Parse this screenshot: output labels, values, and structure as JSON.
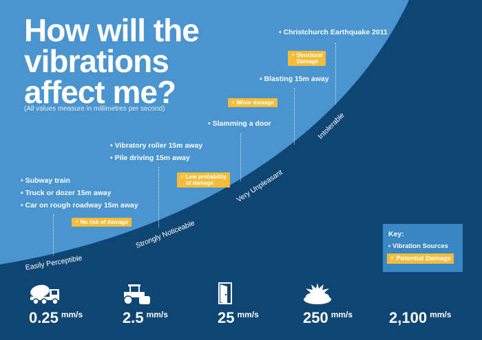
{
  "title_line1": "How will the",
  "title_line2": "vibrations",
  "title_line3": "affect me?",
  "subtitle": "(All values measure in millimetres per second)",
  "columns": [
    {
      "sources": [
        "Subway train",
        "Truck or dozer 15m away",
        "Car on rough roadway 15m away"
      ],
      "damage": [
        "No risk of damage"
      ],
      "level": "Easily Perceptible",
      "value": "0.25",
      "unit": "mm/s",
      "icon": "cement-mixer-icon"
    },
    {
      "sources": [
        "Vibratory roller 15m away",
        "Pile driving 15m away"
      ],
      "damage": [
        "Low probability",
        "of damage"
      ],
      "level": "Strongly Noticeable",
      "value": "2.5",
      "unit": "mm/s",
      "icon": "road-roller-icon"
    },
    {
      "sources": [
        "Slamming a door"
      ],
      "damage": [
        "Minor damage"
      ],
      "level": "Very Unpleasant",
      "value": "25",
      "unit": "mm/s",
      "icon": "door-icon"
    },
    {
      "sources": [
        "Blasting 15m away"
      ],
      "damage": [
        "Structural",
        "Damage"
      ],
      "level": "Intolerable",
      "value": "250",
      "unit": "mm/s",
      "icon": "explosion-icon"
    },
    {
      "sources": [
        "Christchurch Earthquake 2011"
      ],
      "value": "2,100",
      "unit": "mm/s"
    }
  ],
  "key": {
    "title": "Key:",
    "source_label": "Vibration Sources",
    "damage_label": "Potential Damage"
  },
  "colors": {
    "light_blue": "#4a94cf",
    "dark_blue": "#0f4573",
    "accent_yellow": "#f3bd3a",
    "key_blue": "#3a86c2"
  }
}
